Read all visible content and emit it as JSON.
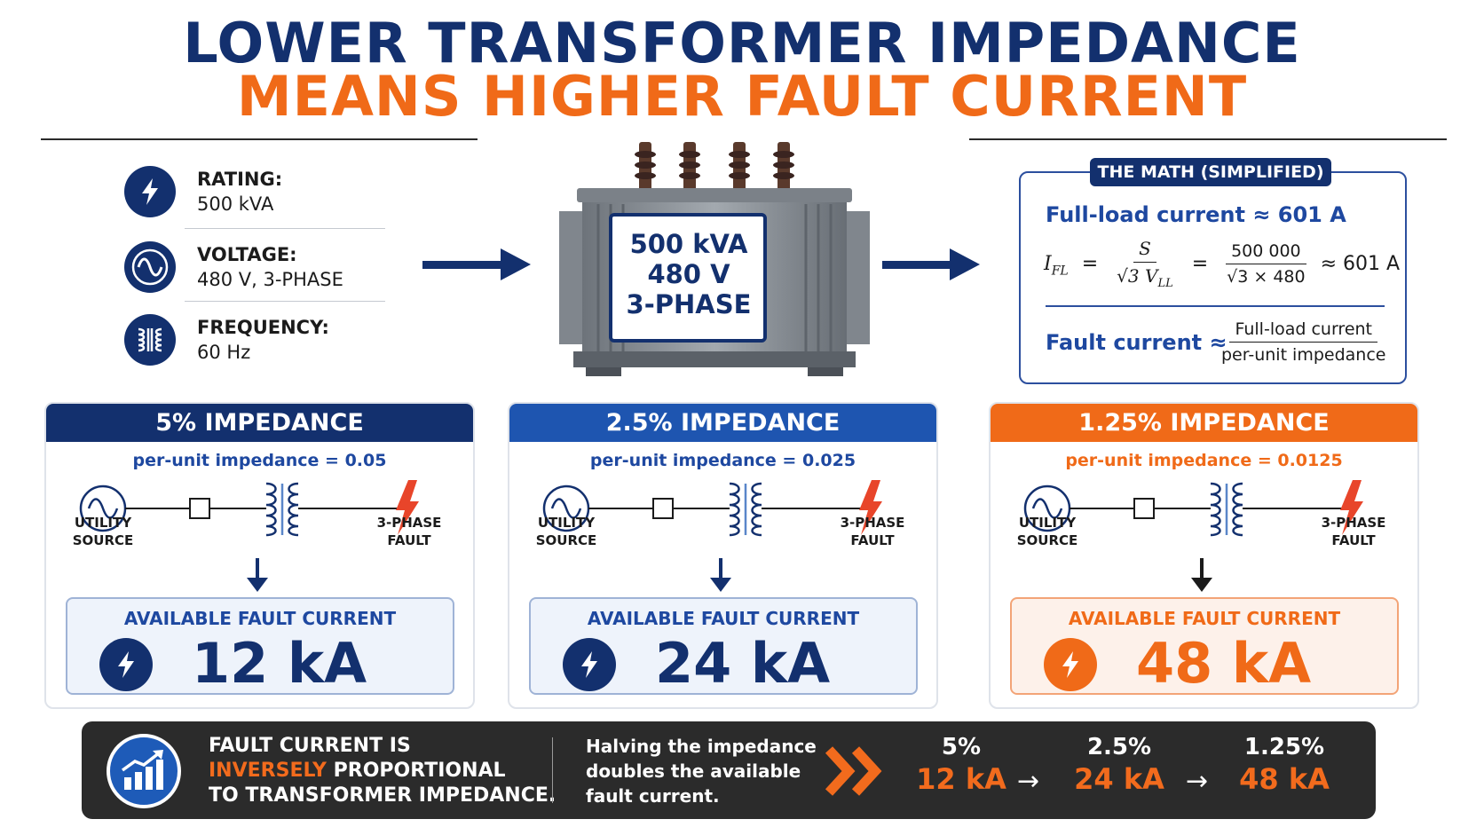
{
  "title": {
    "line1": "LOWER TRANSFORMER IMPEDANCE",
    "line2": "MEANS HIGHER FAULT CURRENT"
  },
  "specs": [
    {
      "label": "RATING:",
      "value": "500 kVA",
      "icon": "lightning-icon"
    },
    {
      "label": "VOLTAGE:",
      "value": "480 V, 3-PHASE",
      "icon": "sine-wave-icon"
    },
    {
      "label": "FREQUENCY:",
      "value": "60 Hz",
      "icon": "transformer-coil-icon"
    }
  ],
  "transformer_plate": {
    "line1": "500 kVA",
    "line2": "480 V",
    "line3": "3-PHASE"
  },
  "math": {
    "tag": "THE MATH (SIMPLIFIED)",
    "full_load_line": "Full-load current ≈ 601 A",
    "formula_lhs": "I",
    "formula_lhs_sub": "FL",
    "eq": "=",
    "frac1_num": "S",
    "frac1_den": "√3 V",
    "frac1_den_sub": "LL",
    "frac2_num": "500 000",
    "frac2_den": "√3 × 480",
    "result": "≈ 601 A",
    "fault_label": "Fault current ≈",
    "fault_num": "Full-load current",
    "fault_den": "per-unit impedance"
  },
  "panels": [
    {
      "header": "5% IMPEDANCE",
      "sub": "per-unit impedance = 0.05",
      "source_1": "UTILITY",
      "source_2": "SOURCE",
      "fault_1": "3-PHASE",
      "fault_2": "FAULT",
      "box_title": "AVAILABLE FAULT CURRENT",
      "value": "12 kA"
    },
    {
      "header": "2.5% IMPEDANCE",
      "sub": "per-unit impedance = 0.025",
      "source_1": "UTILITY",
      "source_2": "SOURCE",
      "fault_1": "3-PHASE",
      "fault_2": "FAULT",
      "box_title": "AVAILABLE FAULT CURRENT",
      "value": "24 kA"
    },
    {
      "header": "1.25% IMPEDANCE",
      "sub": "per-unit impedance = 0.0125",
      "source_1": "UTILITY",
      "source_2": "SOURCE",
      "fault_1": "3-PHASE",
      "fault_2": "FAULT",
      "box_title": "AVAILABLE FAULT CURRENT",
      "value": "48 kA"
    }
  ],
  "banner": {
    "line1": "FAULT CURRENT IS",
    "line2_accent": "INVERSELY",
    "line2_rest": " PROPORTIONAL",
    "line3": "TO TRANSFORMER IMPEDANCE.",
    "sub1": "Halving the impedance",
    "sub2": "doubles the available",
    "sub3": "fault current.",
    "steps": [
      {
        "pct": "5%",
        "ka": "12 kA"
      },
      {
        "pct": "2.5%",
        "ka": "24 kA"
      },
      {
        "pct": "1.25%",
        "ka": "48 kA"
      }
    ],
    "arrow": "→"
  },
  "colors": {
    "navy": "#13306e",
    "blue": "#1e48a0",
    "orange": "#f06a18",
    "red": "#e8452a"
  }
}
